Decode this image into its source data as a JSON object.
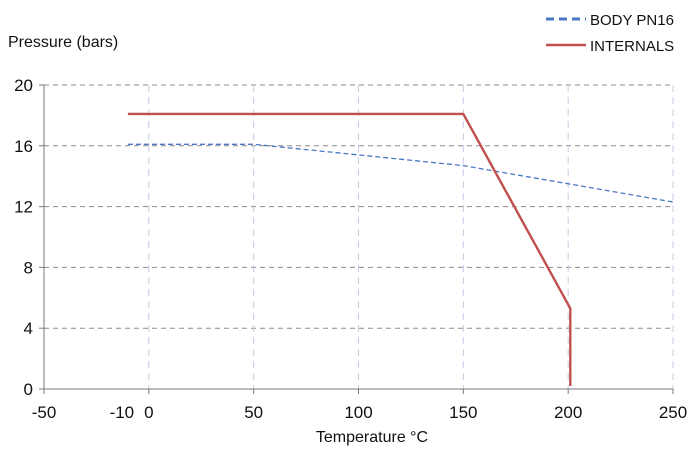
{
  "chart_data": {
    "type": "line",
    "xlabel": "Temperature   °C",
    "ylabel": "Pressure (bars)",
    "xlim": [
      -50,
      250
    ],
    "ylim": [
      0,
      20
    ],
    "x_ticks": [
      -50,
      0,
      50,
      100,
      150,
      200,
      250
    ],
    "y_ticks": [
      0,
      4,
      8,
      12,
      16,
      20
    ],
    "extra_x_tick_label": "-10",
    "extra_x_tick_value": -10,
    "grid": true,
    "legend_position": "top-right",
    "series": [
      {
        "name": "BODY PN16",
        "style": "dashed",
        "color": "#4a78c8",
        "points": [
          [
            -10,
            16.1
          ],
          [
            0,
            16.1
          ],
          [
            50,
            16.1
          ],
          [
            100,
            15.4
          ],
          [
            150,
            14.7
          ],
          [
            200,
            13.5
          ],
          [
            250,
            12.3
          ]
        ]
      },
      {
        "name": "INTERNALS",
        "style": "solid",
        "color": "#c0504d",
        "points": [
          [
            -10,
            18.1
          ],
          [
            150,
            18.1
          ],
          [
            201,
            5.3
          ],
          [
            201,
            0.2
          ]
        ]
      }
    ]
  }
}
